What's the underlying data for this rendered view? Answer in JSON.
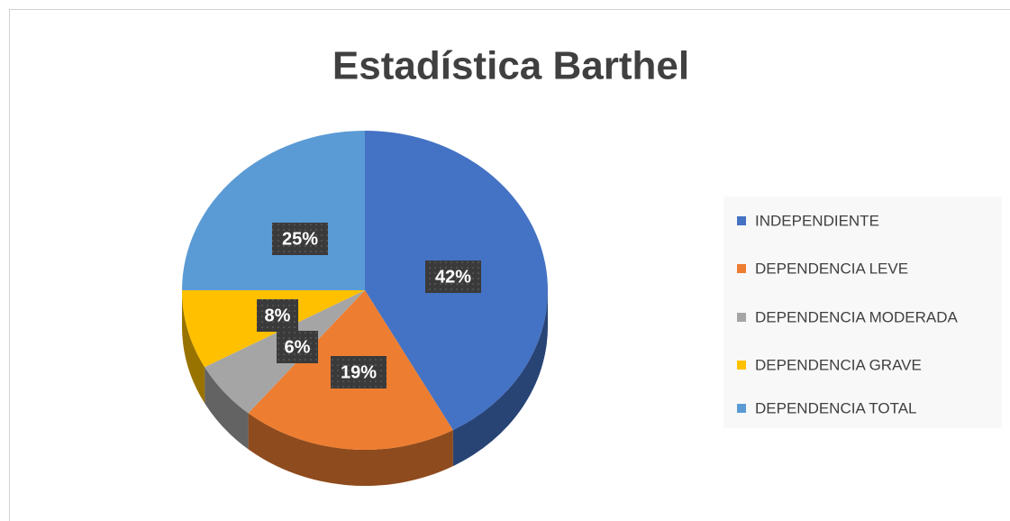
{
  "chart_data": {
    "type": "pie",
    "title": "Estadística Barthel",
    "categories": [
      "INDEPENDIENTE",
      "DEPENDENCIA LEVE",
      "DEPENDENCIA MODERADA",
      "DEPENDENCIA GRAVE",
      "DEPENDENCIA TOTAL"
    ],
    "values": [
      42,
      19,
      6,
      8,
      25
    ],
    "value_labels": [
      "42%",
      "19%",
      "6%",
      "8%",
      "25%"
    ],
    "colors": [
      "#4472c4",
      "#ed7d31",
      "#a5a5a5",
      "#ffc000",
      "#5b9bd5"
    ],
    "legend": "right"
  }
}
